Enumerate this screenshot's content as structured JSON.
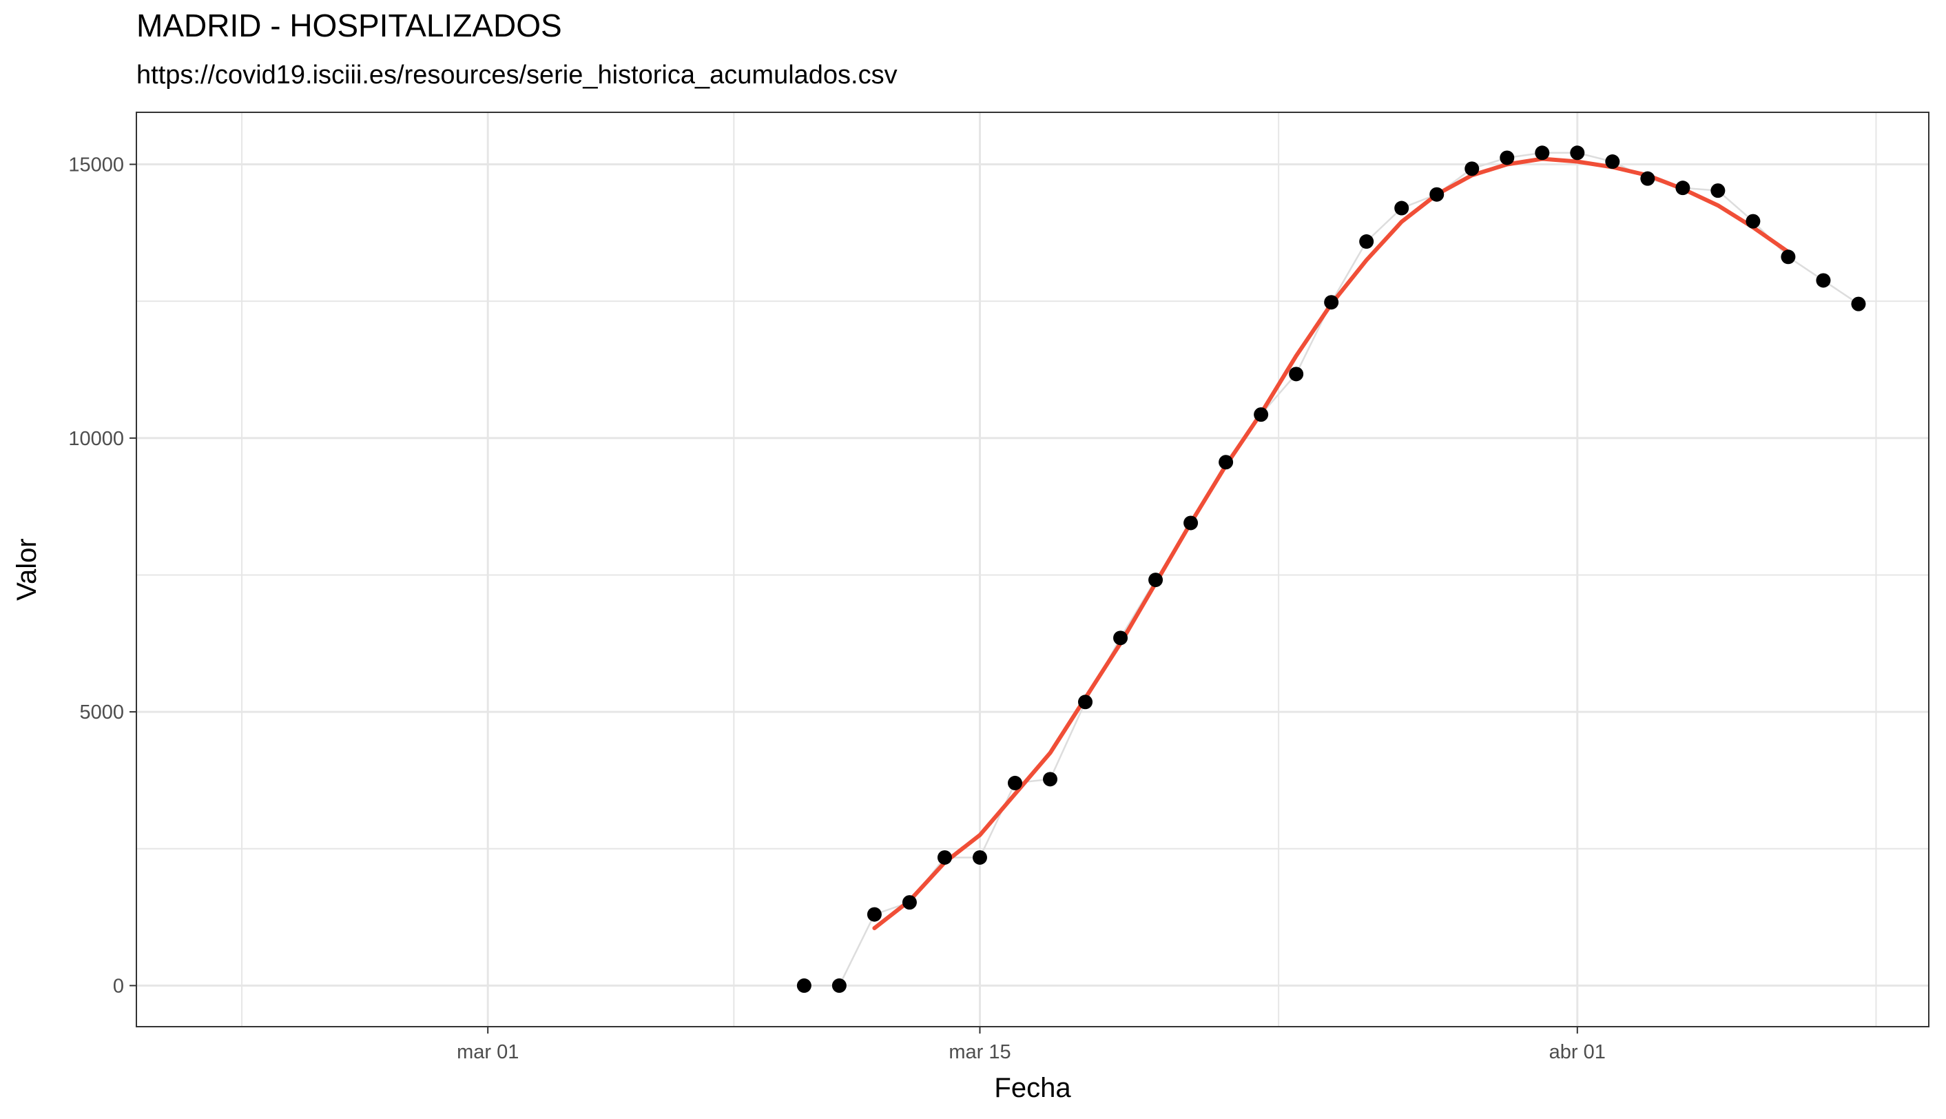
{
  "chart_data": {
    "type": "line",
    "title": "MADRID - HOSPITALIZADOS",
    "subtitle": "https://covid19.isciii.es/resources/serie_historica_acumulados.csv",
    "xlabel": "Fecha",
    "ylabel": "Valor",
    "x_ticks": [
      {
        "date": "2020-03-01",
        "label": "mar 01"
      },
      {
        "date": "2020-03-15",
        "label": "mar 15"
      },
      {
        "date": "2020-04-01",
        "label": "abr 01"
      }
    ],
    "y_ticks": [
      0,
      5000,
      10000,
      15000
    ],
    "xlim": [
      "2020-02-20",
      "2020-04-11"
    ],
    "ylim": [
      -750,
      15950
    ],
    "grid": true,
    "points": [
      {
        "date": "2020-03-10",
        "value": 0
      },
      {
        "date": "2020-03-11",
        "value": 0
      },
      {
        "date": "2020-03-12",
        "value": 1300
      },
      {
        "date": "2020-03-13",
        "value": 1520
      },
      {
        "date": "2020-03-14",
        "value": 2340
      },
      {
        "date": "2020-03-15",
        "value": 2340
      },
      {
        "date": "2020-03-16",
        "value": 3700
      },
      {
        "date": "2020-03-17",
        "value": 3770
      },
      {
        "date": "2020-03-18",
        "value": 5180
      },
      {
        "date": "2020-03-19",
        "value": 6350
      },
      {
        "date": "2020-03-20",
        "value": 7410
      },
      {
        "date": "2020-03-21",
        "value": 8450
      },
      {
        "date": "2020-03-22",
        "value": 9560
      },
      {
        "date": "2020-03-23",
        "value": 10430
      },
      {
        "date": "2020-03-24",
        "value": 11170
      },
      {
        "date": "2020-03-25",
        "value": 12480
      },
      {
        "date": "2020-03-26",
        "value": 13590
      },
      {
        "date": "2020-03-27",
        "value": 14200
      },
      {
        "date": "2020-03-28",
        "value": 14450
      },
      {
        "date": "2020-03-29",
        "value": 14920
      },
      {
        "date": "2020-03-30",
        "value": 15120
      },
      {
        "date": "2020-03-31",
        "value": 15210
      },
      {
        "date": "2020-04-01",
        "value": 15210
      },
      {
        "date": "2020-04-02",
        "value": 15050
      },
      {
        "date": "2020-04-03",
        "value": 14740
      },
      {
        "date": "2020-04-04",
        "value": 14570
      },
      {
        "date": "2020-04-05",
        "value": 14520
      },
      {
        "date": "2020-04-06",
        "value": 13960
      },
      {
        "date": "2020-04-07",
        "value": 13310
      },
      {
        "date": "2020-04-08",
        "value": 12880
      },
      {
        "date": "2020-04-09",
        "value": 12450
      }
    ],
    "smooth": [
      {
        "date": "2020-03-12",
        "value": 1050
      },
      {
        "date": "2020-03-13",
        "value": 1550
      },
      {
        "date": "2020-03-14",
        "value": 2250
      },
      {
        "date": "2020-03-15",
        "value": 2750
      },
      {
        "date": "2020-03-16",
        "value": 3500
      },
      {
        "date": "2020-03-17",
        "value": 4250
      },
      {
        "date": "2020-03-18",
        "value": 5250
      },
      {
        "date": "2020-03-19",
        "value": 6250
      },
      {
        "date": "2020-03-20",
        "value": 7350
      },
      {
        "date": "2020-03-21",
        "value": 8450
      },
      {
        "date": "2020-03-22",
        "value": 9500
      },
      {
        "date": "2020-03-23",
        "value": 10450
      },
      {
        "date": "2020-03-24",
        "value": 11500
      },
      {
        "date": "2020-03-25",
        "value": 12450
      },
      {
        "date": "2020-03-26",
        "value": 13250
      },
      {
        "date": "2020-03-27",
        "value": 13950
      },
      {
        "date": "2020-03-28",
        "value": 14450
      },
      {
        "date": "2020-03-29",
        "value": 14800
      },
      {
        "date": "2020-03-30",
        "value": 15000
      },
      {
        "date": "2020-03-31",
        "value": 15100
      },
      {
        "date": "2020-04-01",
        "value": 15050
      },
      {
        "date": "2020-04-02",
        "value": 14950
      },
      {
        "date": "2020-04-03",
        "value": 14800
      },
      {
        "date": "2020-04-04",
        "value": 14550
      },
      {
        "date": "2020-04-05",
        "value": 14250
      },
      {
        "date": "2020-04-06",
        "value": 13850
      },
      {
        "date": "2020-04-07",
        "value": 13400
      }
    ],
    "colors": {
      "points": "#000000",
      "connector": "#dddddd",
      "smooth": "#f04e37",
      "grid": "#e6e6e6",
      "border": "#333333"
    }
  }
}
